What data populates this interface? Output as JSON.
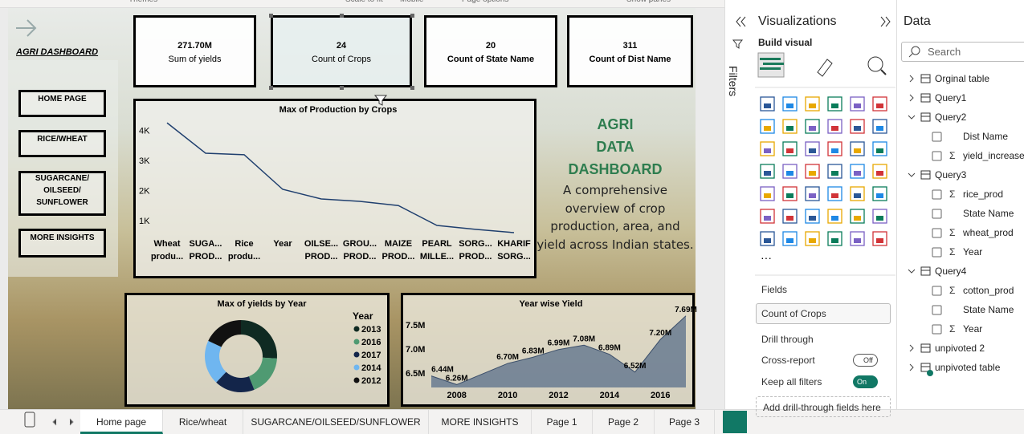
{
  "ribbon": {
    "labels": [
      "Themes",
      "Scale to fit",
      "Mobile",
      "Page options",
      "Show panes"
    ]
  },
  "canvas": {
    "nav": {
      "title": "AGRI DASHBOARD",
      "buttons": [
        [
          "HOME PAGE"
        ],
        [
          "RICE/WHEAT"
        ],
        [
          "SUGARCANE/",
          "OILSEED/",
          "SUNFLOWER"
        ],
        [
          "MORE INSIGHTS"
        ]
      ]
    },
    "cards": [
      {
        "value": "271.70M",
        "label": "Sum of yields"
      },
      {
        "value": "24",
        "label": "Count of Crops"
      },
      {
        "value": "20",
        "label": "Count of State Name"
      },
      {
        "value": "311",
        "label": "Count of Dist Name"
      }
    ],
    "text_box": {
      "heading": [
        "AGRI",
        "DATA",
        "DASHBOARD"
      ],
      "body": [
        "A comprehensive",
        "overview of crop",
        "production, area, and",
        "yield across Indian states."
      ]
    },
    "line_chart": {
      "type": "line",
      "title": "Max of Production by Crops",
      "categories": [
        [
          "Wheat",
          "produ..."
        ],
        [
          "SUGA...",
          "PROD..."
        ],
        [
          "Rice",
          "produ..."
        ],
        [
          "Year",
          null
        ],
        [
          "OILSE...",
          "PROD..."
        ],
        [
          "GROU...",
          "PROD..."
        ],
        [
          "MAIZE",
          "PROD..."
        ],
        [
          "PEARL",
          "MILLE..."
        ],
        [
          "SORG...",
          "PROD..."
        ],
        [
          "KHARIF",
          "SORG..."
        ]
      ],
      "values": [
        4250,
        3240,
        3190,
        2040,
        1720,
        1640,
        1500,
        840,
        710,
        600
      ],
      "color": "#1f3f6e",
      "ylim": [
        500,
        4500
      ],
      "yticks": [
        {
          "value": 1000,
          "label": "1K"
        },
        {
          "value": 2000,
          "label": "2K"
        },
        {
          "value": 3000,
          "label": "3K"
        },
        {
          "value": 4000,
          "label": "4K"
        }
      ]
    },
    "donut_chart": {
      "type": "pie",
      "title": "Max of yields by Year",
      "legend_title": "Year",
      "categories": [
        "2013",
        "2016",
        "2017",
        "2014",
        "2012"
      ],
      "values": [
        26,
        18,
        18,
        20,
        18
      ],
      "colors": [
        "#0f2a22",
        "#4f9a72",
        "#13254a",
        "#6fb6f0",
        "#111111"
      ]
    },
    "area_chart": {
      "type": "area",
      "title": "Year wise Yield",
      "x": [
        2007,
        2008,
        2010,
        2011,
        2012,
        2013,
        2014,
        2015,
        2016,
        2017
      ],
      "values": [
        6440000,
        6260000,
        6700000,
        6830000,
        6990000,
        7080000,
        6890000,
        6520000,
        7200000,
        7690000
      ],
      "value_labels": [
        "6.44M",
        "6.26M",
        "6.70M",
        "6.83M",
        "6.99M",
        "7.08M",
        "6.89M",
        "6.52M",
        "7.20M",
        "7.69M"
      ],
      "color": "#5a6f8a",
      "xlim": [
        2007,
        2017
      ],
      "xticks": [
        2008,
        2010,
        2012,
        2014,
        2016
      ],
      "ylim": [
        6200000,
        7720000
      ],
      "yticks": [
        {
          "value": 6500000,
          "label": "6.5M"
        },
        {
          "value": 7000000,
          "label": "7.0M"
        },
        {
          "value": 7500000,
          "label": "7.5M"
        }
      ]
    }
  },
  "filters": {
    "title": "Filters"
  },
  "visualizations": {
    "title": "Visualizations",
    "build": "Build visual",
    "fields_title": "Fields",
    "field": "Count of Crops",
    "drill_title": "Drill through",
    "cross_report": "Cross-report",
    "cross_state": "Off",
    "keep_filters": "Keep all filters",
    "keep_state": "On",
    "drop_hint": "Add drill-through fields here"
  },
  "data_pane": {
    "title": "Data",
    "search": "Search",
    "tables": [
      {
        "name": "Orginal table"
      },
      {
        "name": "Query1"
      },
      {
        "name": "Query2",
        "fields": [
          {
            "name": "Dist Name"
          },
          {
            "icon": "Σ",
            "name": "yield_increase"
          }
        ]
      },
      {
        "name": "Query3",
        "fields": [
          {
            "icon": "Σ",
            "name": "rice_prod"
          },
          {
            "name": "State Name"
          },
          {
            "icon": "Σ",
            "name": "wheat_prod"
          },
          {
            "icon": "Σ",
            "name": "Year"
          }
        ]
      },
      {
        "name": "Query4",
        "fields": [
          {
            "icon": "Σ",
            "name": "cotton_prod"
          },
          {
            "name": "State Name"
          },
          {
            "icon": "Σ",
            "name": "Year"
          }
        ]
      },
      {
        "name": "unpivoted 2"
      },
      {
        "name": "unpivoted table"
      }
    ]
  },
  "page_tabs": [
    "Home page",
    "Rice/wheat",
    "SUGARCANE/OILSEED/SUNFLOWER",
    "MORE INSIGHTS",
    "Page 1",
    "Page 2",
    "Page 3"
  ]
}
